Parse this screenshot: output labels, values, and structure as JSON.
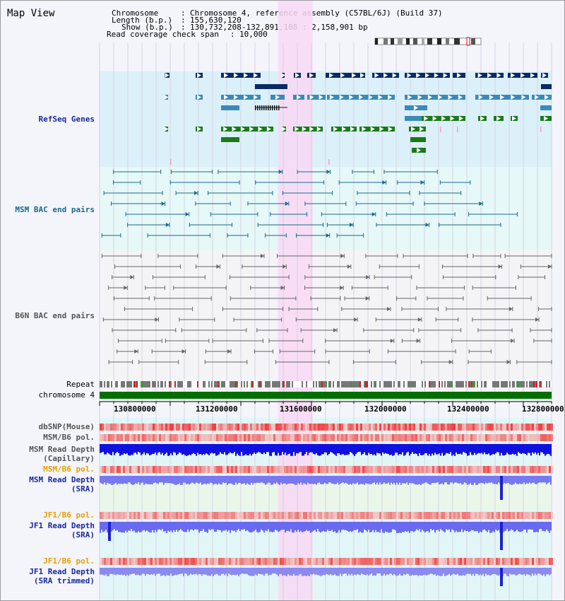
{
  "app": {
    "title": "Map View"
  },
  "info": {
    "chromosome_label": "Chromosome",
    "chromosome_value": "Chromosome 4, reference assembly (C57BL/6J) (Build 37)",
    "length_label": "Length (b.p.)",
    "length_value": "155,630,120",
    "show_label": "Show (b.p.)",
    "show_value": "130,732,208-132,891,108 : 2,158,901 bp",
    "coverage_label": "Read coverage check span",
    "coverage_value": "10,000"
  },
  "tracks": {
    "refseq": {
      "label": "RefSeq Genes",
      "color": "#1a2a99"
    },
    "msm_bac": {
      "label": "MSM BAC end pairs",
      "color": "#1a6a8a"
    },
    "b6n_bac": {
      "label": "B6N BAC end pairs",
      "color": "#555555"
    },
    "repeat": {
      "label": "Repeat"
    },
    "chromosome": {
      "label": "chromosome 4"
    },
    "dbsnp": {
      "label": "dbSNP(Mouse)"
    },
    "msm_b6_pol_1": {
      "label": "MSM/B6 pol."
    },
    "msm_depth_cap": {
      "line1": "MSM Read Depth",
      "line2": "(Capillary)"
    },
    "msm_b6_pol_2": {
      "label": "MSM/B6 pol.",
      "color": "#e6a000"
    },
    "msm_depth_sra": {
      "line1": "MSM Read Depth",
      "line2": "(SRA)",
      "color": "#1a2a99"
    },
    "jf1_b6_pol_1": {
      "label": "JF1/B6 pol.",
      "color": "#e6a000"
    },
    "jf1_depth_sra": {
      "line1": "JF1 Read Depth",
      "line2": "(SRA)",
      "color": "#1a2a99"
    },
    "jf1_b6_pol_2": {
      "label": "JF1/B6 pol.",
      "color": "#e6a000"
    },
    "jf1_depth_trim": {
      "line1": "JF1 Read Depth",
      "line2": "(SRA trimmed)",
      "color": "#1a2a99"
    }
  },
  "axis": {
    "ticks": [
      "130800000",
      "131200000",
      "131600000",
      "132000000",
      "132400000",
      "132800000"
    ]
  },
  "highlight": {
    "start_bp": 131585000,
    "end_bp": 131750000,
    "color": "#f8d8f4"
  },
  "view": {
    "start_bp": 130732208,
    "end_bp": 132891108
  }
}
